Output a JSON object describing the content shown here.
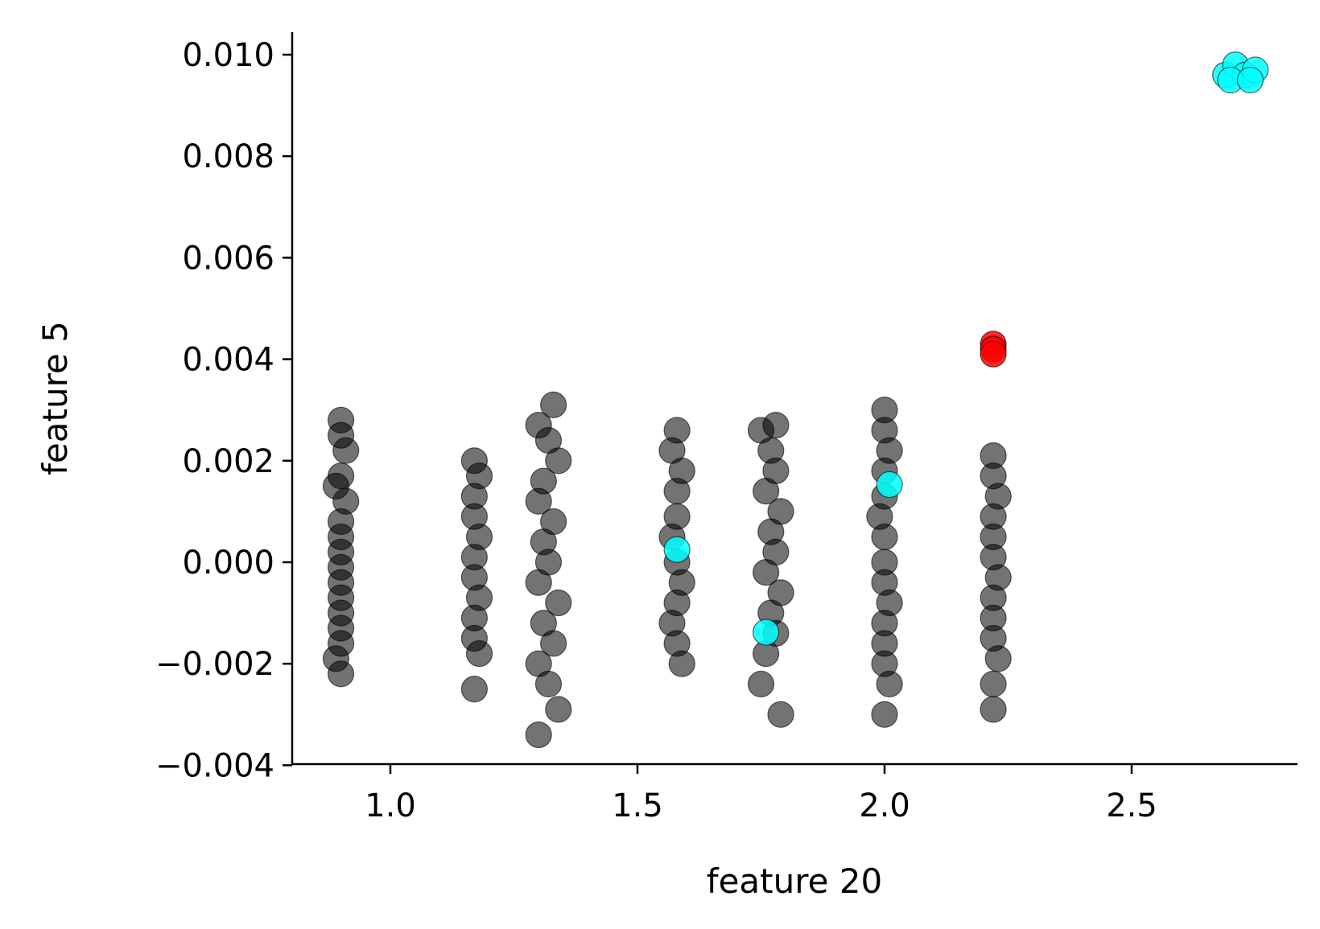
{
  "chart_data": {
    "type": "scatter",
    "title": "",
    "xlabel": "feature 20",
    "ylabel": "feature 5",
    "xlim": [
      0.8,
      2.85
    ],
    "ylim": [
      -0.004,
      0.0105
    ],
    "xticks": [
      1.0,
      1.5,
      2.0,
      2.5
    ],
    "xtick_labels": [
      "1.0",
      "1.5",
      "2.0",
      "2.5"
    ],
    "yticks": [
      -0.004,
      -0.002,
      0.0,
      0.002,
      0.004,
      0.006,
      0.008,
      0.01
    ],
    "ytick_labels": [
      "−0.004",
      "−0.002",
      "0.000",
      "0.002",
      "0.004",
      "0.006",
      "0.008",
      "0.010"
    ],
    "grid": false,
    "legend": "none",
    "colors": {
      "black": "#000000",
      "cyan": "#00ffff",
      "red": "#ff0000"
    },
    "series": [
      {
        "color": "black",
        "points": [
          [
            0.9,
            0.0028
          ],
          [
            0.9,
            0.0025
          ],
          [
            0.91,
            0.0022
          ],
          [
            0.9,
            0.0017
          ],
          [
            0.89,
            0.0015
          ],
          [
            0.91,
            0.0012
          ],
          [
            0.9,
            0.0008
          ],
          [
            0.9,
            0.0005
          ],
          [
            0.9,
            0.0002
          ],
          [
            0.9,
            -0.0001
          ],
          [
            0.9,
            -0.0004
          ],
          [
            0.9,
            -0.0007
          ],
          [
            0.9,
            -0.001
          ],
          [
            0.9,
            -0.0013
          ],
          [
            0.9,
            -0.0016
          ],
          [
            0.89,
            -0.0019
          ],
          [
            0.9,
            -0.0022
          ],
          [
            1.17,
            0.002
          ],
          [
            1.18,
            0.0017
          ],
          [
            1.17,
            0.0013
          ],
          [
            1.17,
            0.0009
          ],
          [
            1.18,
            0.0005
          ],
          [
            1.17,
            0.0001
          ],
          [
            1.17,
            -0.0003
          ],
          [
            1.18,
            -0.0007
          ],
          [
            1.17,
            -0.0011
          ],
          [
            1.17,
            -0.0015
          ],
          [
            1.18,
            -0.0018
          ],
          [
            1.17,
            -0.0025
          ],
          [
            1.3,
            0.0027
          ],
          [
            1.33,
            0.0031
          ],
          [
            1.32,
            0.0024
          ],
          [
            1.34,
            0.002
          ],
          [
            1.31,
            0.0016
          ],
          [
            1.3,
            0.0012
          ],
          [
            1.33,
            0.0008
          ],
          [
            1.31,
            0.0004
          ],
          [
            1.32,
            0.0
          ],
          [
            1.3,
            -0.0004
          ],
          [
            1.34,
            -0.0008
          ],
          [
            1.31,
            -0.0012
          ],
          [
            1.33,
            -0.0016
          ],
          [
            1.3,
            -0.002
          ],
          [
            1.32,
            -0.0024
          ],
          [
            1.34,
            -0.0029
          ],
          [
            1.3,
            -0.0034
          ],
          [
            1.58,
            0.0026
          ],
          [
            1.57,
            0.0022
          ],
          [
            1.59,
            0.0018
          ],
          [
            1.58,
            0.0014
          ],
          [
            1.58,
            0.0009
          ],
          [
            1.57,
            0.0005
          ],
          [
            1.58,
            0.0
          ],
          [
            1.59,
            -0.0004
          ],
          [
            1.58,
            -0.0008
          ],
          [
            1.57,
            -0.0012
          ],
          [
            1.58,
            -0.0016
          ],
          [
            1.59,
            -0.002
          ],
          [
            1.75,
            0.0026
          ],
          [
            1.78,
            0.0027
          ],
          [
            1.77,
            0.0022
          ],
          [
            1.78,
            0.0018
          ],
          [
            1.76,
            0.0014
          ],
          [
            1.79,
            0.001
          ],
          [
            1.77,
            0.0006
          ],
          [
            1.78,
            0.0002
          ],
          [
            1.76,
            -0.0002
          ],
          [
            1.79,
            -0.0006
          ],
          [
            1.77,
            -0.001
          ],
          [
            1.78,
            -0.0014
          ],
          [
            1.76,
            -0.0018
          ],
          [
            1.75,
            -0.0024
          ],
          [
            1.79,
            -0.003
          ],
          [
            2.0,
            0.003
          ],
          [
            2.0,
            0.0026
          ],
          [
            2.01,
            0.0022
          ],
          [
            2.0,
            0.0018
          ],
          [
            2.0,
            0.0013
          ],
          [
            1.99,
            0.0009
          ],
          [
            2.0,
            0.0005
          ],
          [
            2.0,
            0.0
          ],
          [
            2.0,
            -0.0004
          ],
          [
            2.01,
            -0.0008
          ],
          [
            2.0,
            -0.0012
          ],
          [
            2.0,
            -0.0016
          ],
          [
            2.0,
            -0.002
          ],
          [
            2.01,
            -0.0024
          ],
          [
            2.0,
            -0.003
          ],
          [
            2.22,
            0.0021
          ],
          [
            2.22,
            0.0017
          ],
          [
            2.23,
            0.0013
          ],
          [
            2.22,
            0.0009
          ],
          [
            2.22,
            0.0005
          ],
          [
            2.22,
            0.0001
          ],
          [
            2.23,
            -0.0003
          ],
          [
            2.22,
            -0.0007
          ],
          [
            2.22,
            -0.0011
          ],
          [
            2.22,
            -0.0015
          ],
          [
            2.23,
            -0.0019
          ],
          [
            2.22,
            -0.0024
          ],
          [
            2.22,
            -0.0029
          ]
        ]
      },
      {
        "color": "cyan",
        "points": [
          [
            1.58,
            0.00025
          ],
          [
            1.76,
            -0.00138
          ],
          [
            2.01,
            0.00153
          ],
          [
            2.69,
            0.0096
          ],
          [
            2.71,
            0.0098
          ],
          [
            2.73,
            0.0096
          ],
          [
            2.75,
            0.0097
          ],
          [
            2.7,
            0.0095
          ],
          [
            2.74,
            0.0095
          ]
        ]
      },
      {
        "color": "red",
        "points": [
          [
            2.22,
            0.0043
          ],
          [
            2.22,
            0.0042
          ],
          [
            2.22,
            0.0041
          ]
        ]
      }
    ]
  }
}
